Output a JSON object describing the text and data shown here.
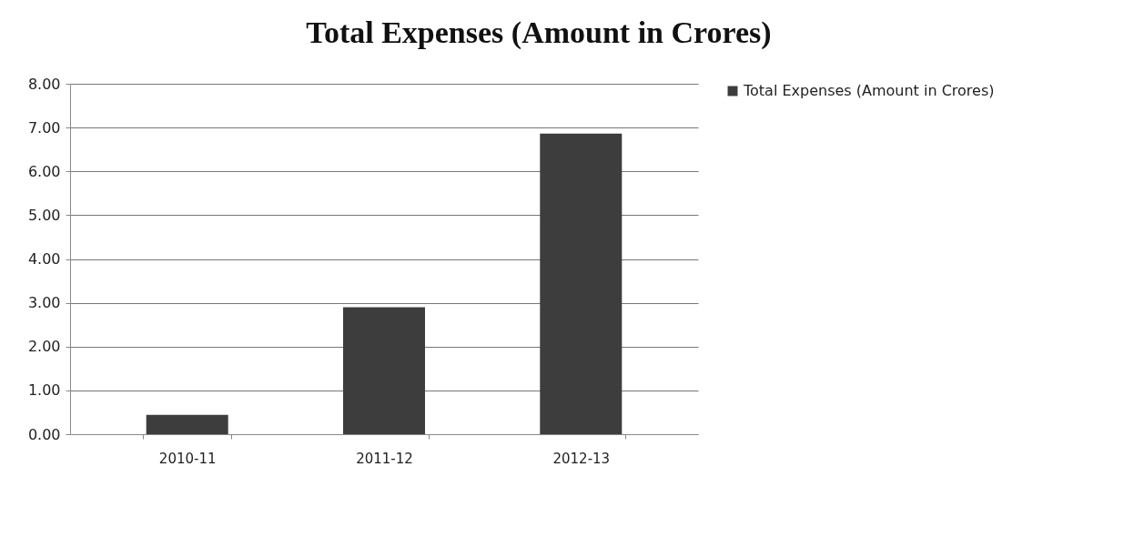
{
  "chart_data": {
    "type": "bar",
    "title": "Total Expenses (Amount in Crores)",
    "categories": [
      "2010-11",
      "2011-12",
      "2012-13"
    ],
    "series": [
      {
        "name": "Total Expenses (Amount in Crores)",
        "color": "#3d3d3d",
        "values": [
          0.44,
          2.9,
          6.86
        ]
      }
    ],
    "ylim": [
      0,
      8
    ],
    "yticks": [
      {
        "value": 0,
        "label": "0.00"
      },
      {
        "value": 1,
        "label": "1.00"
      },
      {
        "value": 2,
        "label": "2.00"
      },
      {
        "value": 3,
        "label": "3.00"
      },
      {
        "value": 4,
        "label": "4.00"
      },
      {
        "value": 5,
        "label": "5.00"
      },
      {
        "value": 6,
        "label": "6.00"
      },
      {
        "value": 7,
        "label": "7.00"
      },
      {
        "value": 8,
        "label": "8.00"
      }
    ],
    "grid": "y",
    "legend": "right"
  }
}
